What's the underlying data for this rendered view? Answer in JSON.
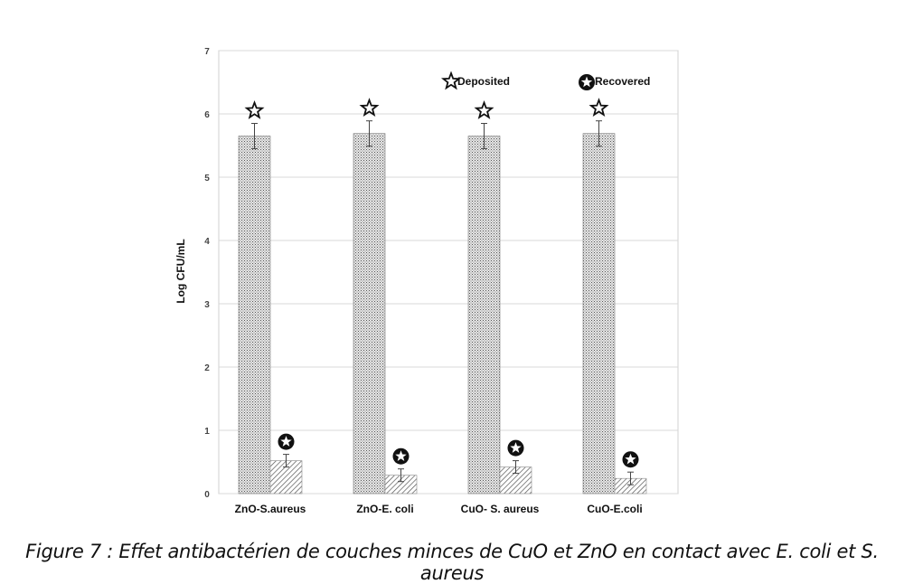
{
  "chart_data": {
    "type": "bar",
    "ylabel": "Log  CFU/mL",
    "ylim": [
      0,
      7
    ],
    "yticks": [
      0,
      1,
      2,
      3,
      4,
      5,
      6,
      7
    ],
    "grid": true,
    "categories": [
      "ZnO-S.aureus",
      "ZnO-E. coli",
      "CuO- S. aureus",
      "CuO-E.coli"
    ],
    "series": [
      {
        "name": "Deposited",
        "values": [
          5.65,
          5.69,
          5.65,
          5.69
        ],
        "errors": [
          0.2,
          0.2,
          0.2,
          0.2
        ],
        "marker": "open-star"
      },
      {
        "name": "Recovered",
        "values": [
          0.52,
          0.29,
          0.42,
          0.24
        ],
        "errors": [
          0.1,
          0.1,
          0.1,
          0.1
        ],
        "marker": "filled-circle-star"
      }
    ],
    "legend": "top-right"
  },
  "caption": "Figure 7 : Effet antibactérien de couches minces de CuO et ZnO en contact avec E. coli et S. aureus"
}
